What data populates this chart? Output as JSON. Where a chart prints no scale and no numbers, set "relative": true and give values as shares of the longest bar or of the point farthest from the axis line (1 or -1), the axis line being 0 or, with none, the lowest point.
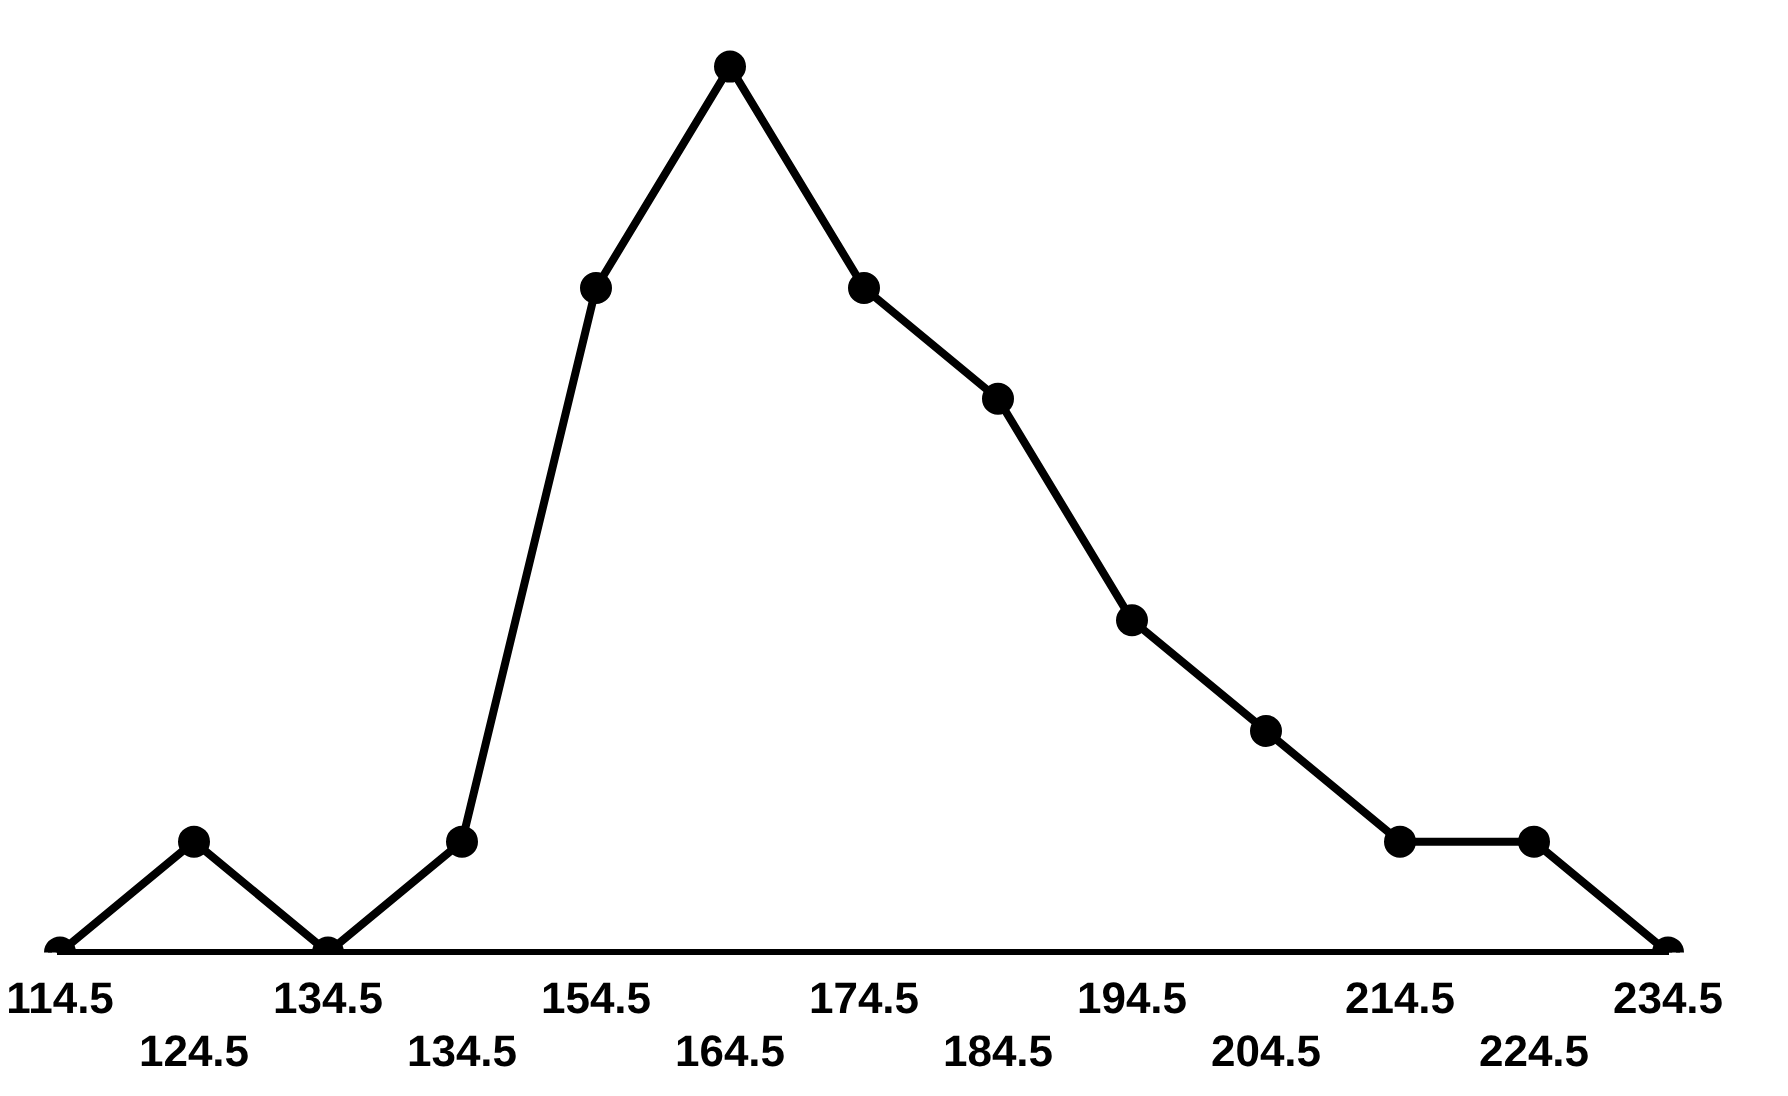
{
  "chart_data": {
    "type": "line",
    "relative": true,
    "categories": [
      "114.5",
      "124.5",
      "134.5",
      "134.5",
      "154.5",
      "164.5",
      "174.5",
      "184.5",
      "194.5",
      "204.5",
      "214.5",
      "224.5",
      "234.5"
    ],
    "values": [
      0,
      0.125,
      0,
      0.125,
      0.75,
      1,
      0.75,
      0.625,
      0.375,
      0.25,
      0.125,
      0.125,
      0
    ],
    "color": "#000000",
    "marker": "circle",
    "grid": false,
    "legend": false,
    "line_style": "solid"
  }
}
